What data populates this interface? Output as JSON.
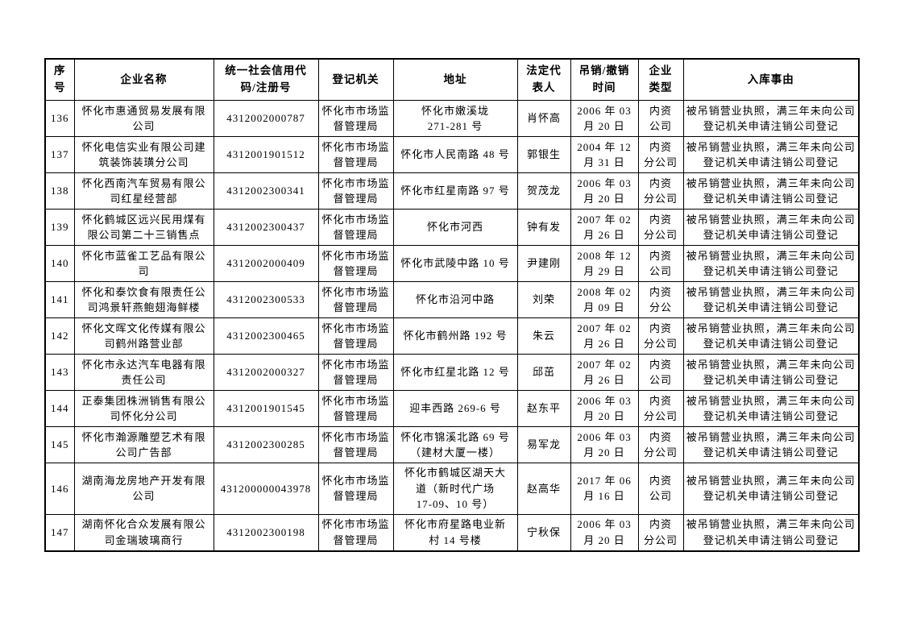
{
  "colors": {
    "background": "#ffffff",
    "border": "#000000",
    "text": "#000000"
  },
  "table": {
    "headers": [
      "序\n号",
      "企业名称",
      "统一社会信用代\n码/注册号",
      "登记机关",
      "地址",
      "法定代\n表人",
      "吊销/撤销\n时间",
      "企业\n类型",
      "入库事由"
    ],
    "rows": [
      {
        "cells": [
          "136",
          "怀化市惠通贸易发展有限\n公司",
          "4312002000787",
          "怀化市市场监\n督管理局",
          "怀化市嫩溪垅\n271-281 号",
          "肖怀高",
          "2006 年 03\n月 20 日",
          "内资\n公司",
          "被吊销营业执照，满三年未向公司\n登记机关申请注销公司登记"
        ]
      },
      {
        "cells": [
          "137",
          "怀化电信实业有限公司建\n筑装饰装璜分公司",
          "4312001901512",
          "怀化市市场监\n督管理局",
          "怀化市人民南路 48 号",
          "郭银生",
          "2004 年 12\n月 31 日",
          "内资\n分公司",
          "被吊销营业执照，满三年未向公司\n登记机关申请注销公司登记"
        ]
      },
      {
        "cells": [
          "138",
          "怀化西南汽车贸易有限公\n司红星经营部",
          "4312002300341",
          "怀化市市场监\n督管理局",
          "怀化市红星南路 97 号",
          "贺茂龙",
          "2006 年 03\n月 20 日",
          "内资\n分公司",
          "被吊销营业执照，满三年未向公司\n登记机关申请注销公司登记"
        ]
      },
      {
        "cells": [
          "139",
          "怀化鹤城区远兴民用煤有\n限公司第二十三销售点",
          "4312002300437",
          "怀化市市场监\n督管理局",
          "怀化市河西",
          "钟有发",
          "2007 年 02\n月 26 日",
          "内资\n分公司",
          "被吊销营业执照，满三年未向公司\n登记机关申请注销公司登记"
        ]
      },
      {
        "cells": [
          "140",
          "怀化市蓝雀工艺品有限公司",
          "4312002000409",
          "怀化市市场监\n督管理局",
          "怀化市武陵中路 10 号",
          "尹建刚",
          "2008 年 12\n月 29 日",
          "内资\n公司",
          "被吊销营业执照，满三年未向公司\n登记机关申请注销公司登记"
        ]
      },
      {
        "cells": [
          "141",
          "怀化和泰饮食有限责任公\n司鸿景轩燕鲍翅海鲜楼",
          "4312002300533",
          "怀化市市场监\n督管理局",
          "怀化市沿河中路",
          "刘荣",
          "2008 年 02\n月 09 日",
          "内资\n分公",
          "被吊销营业执照，满三年未向公司\n登记机关申请注销公司登记"
        ]
      },
      {
        "cells": [
          "142",
          "怀化文晖文化传媒有限公\n司鹤州路营业部",
          "4312002300465",
          "怀化市市场监\n督管理局",
          "怀化市鹤州路 192 号",
          "朱云",
          "2007 年 02\n月 26 日",
          "内资\n分公司",
          "被吊销营业执照，满三年未向公司\n登记机关申请注销公司登记"
        ]
      },
      {
        "cells": [
          "143",
          "怀化市永达汽车电器有限\n责任公司",
          "4312002000327",
          "怀化市市场监\n督管理局",
          "怀化市红星北路 12 号",
          "邱茁",
          "2007 年 02\n月 26 日",
          "内资\n公司",
          "被吊销营业执照，满三年未向公司\n登记机关申请注销公司登记"
        ]
      },
      {
        "cells": [
          "144",
          "正泰集团株洲销售有限公\n司怀化分公司",
          "4312001901545",
          "怀化市市场监\n督管理局",
          "迎丰西路 269-6 号",
          "赵东平",
          "2006 年 03\n月 20 日",
          "内资\n分公司",
          "被吊销营业执照，满三年未向公司\n登记机关申请注销公司登记"
        ]
      },
      {
        "cells": [
          "145",
          "怀化市瀚源雕塑艺术有限\n公司广告部",
          "4312002300285",
          "怀化市市场监\n督管理局",
          "怀化市锦溪北路 69 号\n（建材大厦一楼）",
          "易军龙",
          "2006 年 03\n月 20 日",
          "内资\n分公司",
          "被吊销营业执照，满三年未向公司\n登记机关申请注销公司登记"
        ]
      },
      {
        "cells": [
          "146",
          "湖南海龙房地产开发有限\n公司",
          "431200000043978",
          "怀化市市场监\n督管理局",
          "怀化市鹤城区湖天大\n道（新时代广场\n17-09、10 号）",
          "赵高华",
          "2017 年 06\n月 16 日",
          "内资\n公司",
          "被吊销营业执照，满三年未向公司\n登记机关申请注销公司登记"
        ]
      },
      {
        "cells": [
          "147",
          "湖南怀化合众发展有限公\n司金瑞玻璃商行",
          "4312002300198",
          "怀化市市场监\n督管理局",
          "怀化市府星路电业新\n村 14 号楼",
          "宁秋保",
          "2006 年 03\n月 20 日",
          "内资\n分公司",
          "被吊销营业执照，满三年未向公司\n登记机关申请注销公司登记"
        ]
      }
    ]
  }
}
